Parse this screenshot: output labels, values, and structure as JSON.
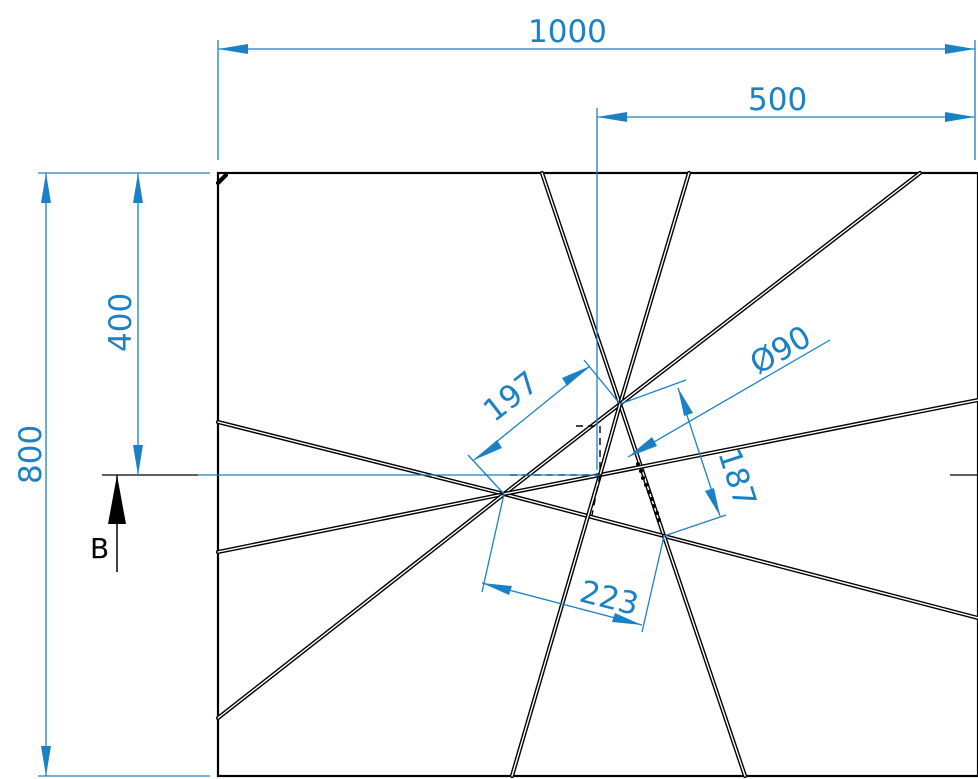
{
  "drawing": {
    "dimensions": {
      "overall_width": "1000",
      "half_width": "500",
      "overall_height": "800",
      "half_height": "400",
      "diameter": "Ø90",
      "side_a": "197",
      "side_b": "187",
      "side_c": "223"
    },
    "section_label": "B",
    "colors": {
      "dimension": "#1a82c4",
      "geometry": "#000000",
      "background": "#ffffff"
    }
  }
}
